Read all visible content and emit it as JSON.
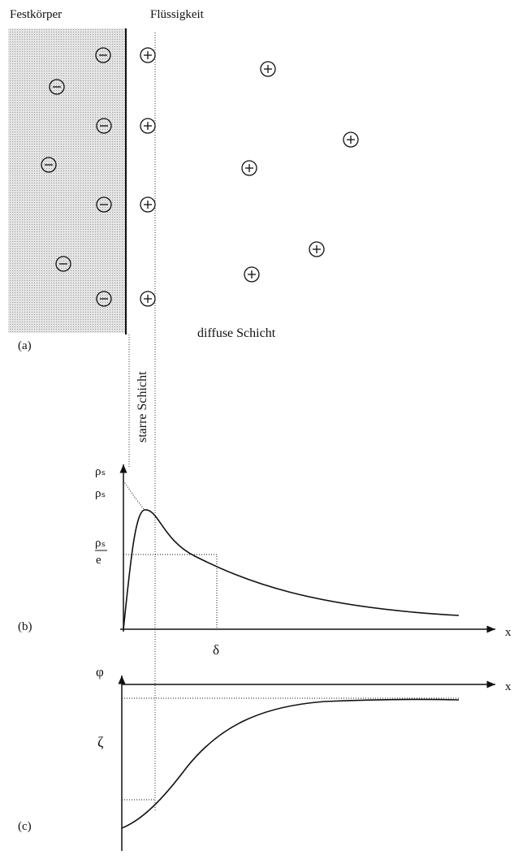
{
  "labels": {
    "solid": "Festkörper",
    "liquid": "Flüssigkeit",
    "panel_a": "(a)",
    "rigid_layer": "starre Schicht",
    "diffuse_layer": "diffuse Schicht",
    "panel_b": "(b)",
    "panel_c": "(c)"
  },
  "plot_b": {
    "y_label": "ρₛ",
    "y_label_start": "ρₛ",
    "y_label_fraction_numerator": "ρₛ",
    "y_label_fraction_denominator": "e",
    "x_label": "x",
    "delta_label": "δ"
  },
  "plot_c": {
    "y_label": "φ",
    "x_label": "x",
    "zeta_label": "ζ"
  }
}
